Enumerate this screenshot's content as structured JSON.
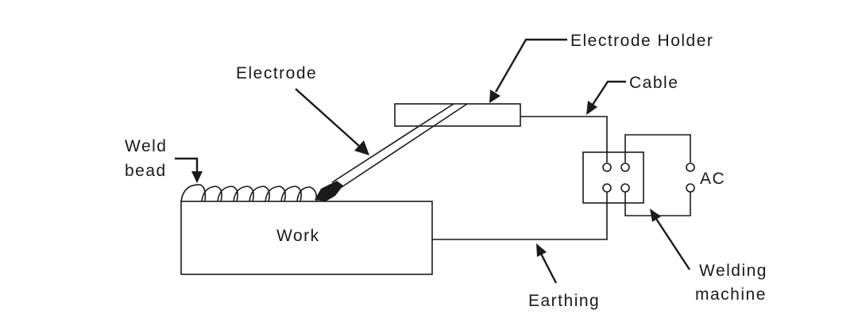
{
  "labels": {
    "electrode_holder": "Electrode Holder",
    "cable": "Cable",
    "electrode": "Electrode",
    "weld": "Weld",
    "bead": "bead",
    "work": "Work",
    "ac": "AC",
    "welding": "Welding",
    "machine": "machine",
    "earthing": "Earthing"
  },
  "colors": {
    "ink": "#1a1a1a",
    "background": "#ffffff"
  }
}
